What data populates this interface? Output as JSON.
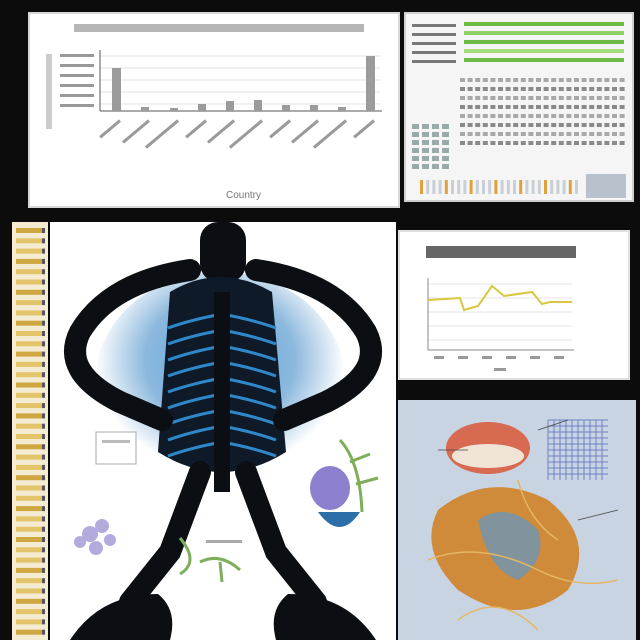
{
  "bar_chart": {
    "x_axis_label": "Country"
  }
}
